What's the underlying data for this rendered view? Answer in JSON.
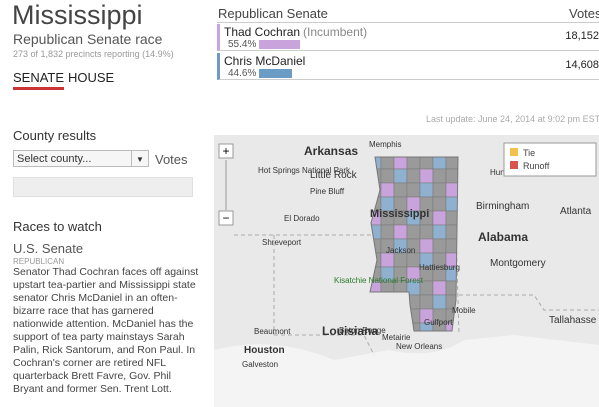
{
  "header": {
    "title": "Mississippi",
    "subtitle": "Republican Senate race",
    "reporting": "273 of 1,832 precincts reporting (14.9%)"
  },
  "tabs": [
    "SENATE",
    "HOUSE"
  ],
  "results": {
    "heading": "Republican Senate",
    "votes_heading": "Votes",
    "rows": [
      {
        "name": "Thad Cochran",
        "note": "(Incumbent)",
        "pct": {
          "value": 55.4,
          "label": "55.4%"
        },
        "votes": "18,152",
        "color": "#c9a3dc"
      },
      {
        "name": "Chris McDaniel",
        "note": null,
        "pct": {
          "value": 44.6,
          "label": "44.6%"
        },
        "votes": "14,608",
        "color": "#6a9cc4"
      }
    ]
  },
  "last_update": "Last update: June 24, 2014 at 9:02 pm EST",
  "sidebar": {
    "county_heading": "County results",
    "select": "Select county...",
    "votes": "Votes",
    "races_heading": "Races to watch",
    "race_title": "U.S. Senate",
    "race_party": "REPUBLICAN",
    "race_text": "Senator Thad Cochran faces off against upstart tea-partier and Mississippi state senator Chris McDaniel in an often-bizarre race that has garnered nationwide attention. McDaniel has the support of tea party mainstays Sarah Palin, Rick Santorum, and Ron Paul. In Cochran's corner are retired NFL quarterback Brett Favre, Gov. Phil Bryant and former Sen. Trent Lott."
  },
  "map": {
    "legend": [
      {
        "label": "Tie",
        "color": "#f2c14e"
      },
      {
        "label": "Runoff",
        "color": "#d9534f"
      }
    ],
    "labels": [
      "Arkansas",
      "Memphis",
      "Hot Springs National Park",
      "Little Rock",
      "Pine Bluff",
      "El Dorado",
      "Shreveport",
      "Mississippi",
      "Jackson",
      "Kisatchie National Forest",
      "Louisiana",
      "Beaumont",
      "Houston",
      "Galveston",
      "Baton Rouge",
      "Metairie",
      "New Orleans",
      "Hattiesburg",
      "Gulfport",
      "Mobile",
      "Huntsville",
      "Birmingham",
      "Atlanta",
      "Alabama",
      "Montgomery",
      "Tallahasse"
    ]
  }
}
